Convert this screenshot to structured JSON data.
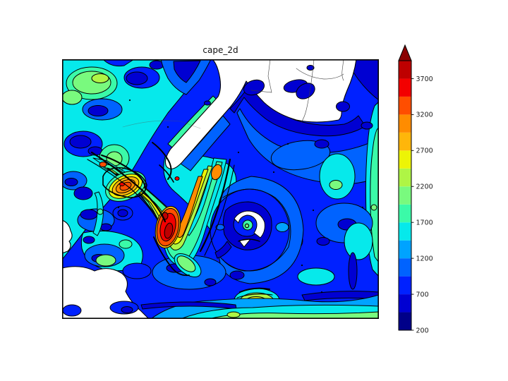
{
  "figure": {
    "background": "#FFFFFF"
  },
  "chart_data": {
    "type": "heatmap",
    "title": "cape_2d",
    "subtitle": "",
    "xlabel": "",
    "ylabel": "",
    "grid": false,
    "legend_position": "colorbar-right",
    "levels": [
      200,
      450,
      700,
      950,
      1200,
      1450,
      1700,
      1950,
      2200,
      2450,
      2700,
      2950,
      3200,
      3450,
      3700,
      3950
    ],
    "palette": {
      "white": "#FFFFFF",
      "200": "#000089",
      "450": "#0000D2",
      "700": "#0021FF",
      "950": "#0063FF",
      "1200": "#00A3FF",
      "1450": "#06E9EB",
      "1700": "#3BFAA8",
      "1950": "#79FA7E",
      "2200": "#AFF545",
      "2450": "#EDF406",
      "2700": "#FFB60A",
      "2950": "#FF8C00",
      "3200": "#FF4E00",
      "3450": "#F30000",
      "3700": "#BE0000"
    },
    "colorbar": {
      "ticks": [
        200,
        700,
        1200,
        1700,
        2200,
        2700,
        3200,
        3700
      ],
      "extend": "max",
      "arrow_color": "#8B0000",
      "tick_color": "#1a1a1a"
    },
    "map_features": [
      "filled CAPE contours with black contour lines",
      "white regions where CAPE below lowest level (land/masked)",
      "state boundary lines over land in upper map",
      "tropical-cyclone vortex with clear eye right of center",
      "curved squall arc of very high CAPE (up to 3700+) southwest of vortex",
      "cyan-green stripe along right edge and along bottom edge"
    ]
  }
}
